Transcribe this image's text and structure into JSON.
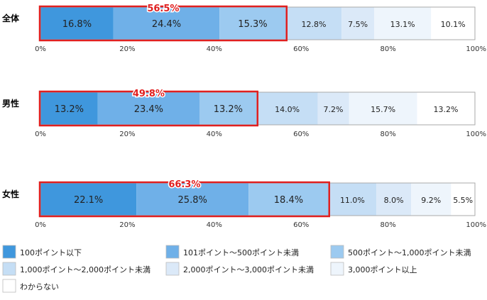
{
  "chart_data": {
    "type": "bar",
    "stacked": true,
    "orientation": "horizontal",
    "xlim": [
      0,
      100
    ],
    "x_ticks": [
      "0%",
      "20%",
      "40%",
      "60%",
      "80%",
      "100%"
    ],
    "categories": [
      "全体",
      "男性",
      "女性"
    ],
    "series": [
      {
        "name": "100ポイント以下",
        "color": "#3f97dd",
        "values": [
          16.8,
          13.2,
          22.1
        ]
      },
      {
        "name": "101ポイント～500ポイント未満",
        "color": "#6fb0e8",
        "values": [
          24.4,
          23.4,
          25.8
        ]
      },
      {
        "name": "500ポイント～1,000ポイント未満",
        "color": "#9ccaf0",
        "values": [
          15.3,
          13.2,
          18.4
        ]
      },
      {
        "name": "1,000ポイント～2,000ポイント未満",
        "color": "#c5def5",
        "values": [
          12.8,
          14.0,
          11.0
        ]
      },
      {
        "name": "2,000ポイント～3,000ポイント未満",
        "color": "#dbe9f8",
        "values": [
          7.5,
          7.2,
          8.0
        ]
      },
      {
        "name": "3,000ポイント以上",
        "color": "#eef5fc",
        "values": [
          13.1,
          15.7,
          9.2
        ]
      },
      {
        "name": "わからない",
        "color": "#ffffff",
        "values": [
          10.1,
          13.2,
          5.5
        ]
      }
    ],
    "value_labels": [
      [
        "16.8%",
        "24.4%",
        "15.3%",
        "12.8%",
        "7.5%",
        "13.1%",
        "10.1%"
      ],
      [
        "13.2%",
        "23.4%",
        "13.2%",
        "14.0%",
        "7.2%",
        "15.7%",
        "13.2%"
      ],
      [
        "22.1%",
        "25.8%",
        "18.4%",
        "11.0%",
        "8.0%",
        "9.2%",
        "5.5%"
      ]
    ],
    "highlight": {
      "color": "#e02020",
      "series_count": 3,
      "labels": [
        "56.5%",
        "49.8%",
        "66.3%"
      ]
    },
    "legend_position": "bottom"
  }
}
